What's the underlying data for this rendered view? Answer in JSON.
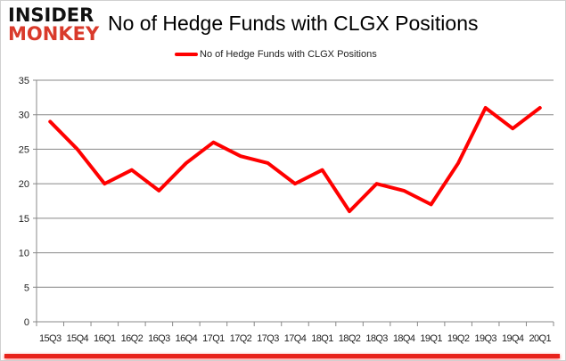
{
  "logo": {
    "line1": "INSIDER",
    "line2": "MONKEY"
  },
  "chart_data": {
    "type": "line",
    "title": "No of Hedge Funds with CLGX Positions",
    "categories": [
      "15Q3",
      "15Q4",
      "16Q1",
      "16Q2",
      "16Q3",
      "16Q4",
      "17Q1",
      "17Q2",
      "17Q3",
      "17Q4",
      "18Q1",
      "18Q2",
      "18Q3",
      "18Q4",
      "19Q1",
      "19Q2",
      "19Q3",
      "19Q4",
      "20Q1"
    ],
    "series": [
      {
        "name": "No of Hedge Funds with CLGX Positions",
        "values": [
          29,
          25,
          20,
          22,
          19,
          23,
          26,
          24,
          23,
          20,
          22,
          16,
          20,
          19,
          17,
          23,
          31,
          28,
          31
        ],
        "color": "#ff0000"
      }
    ],
    "ylim": [
      0,
      35
    ],
    "yticks": [
      0,
      5,
      10,
      15,
      20,
      25,
      30,
      35
    ],
    "grid": true,
    "legend": "top"
  }
}
